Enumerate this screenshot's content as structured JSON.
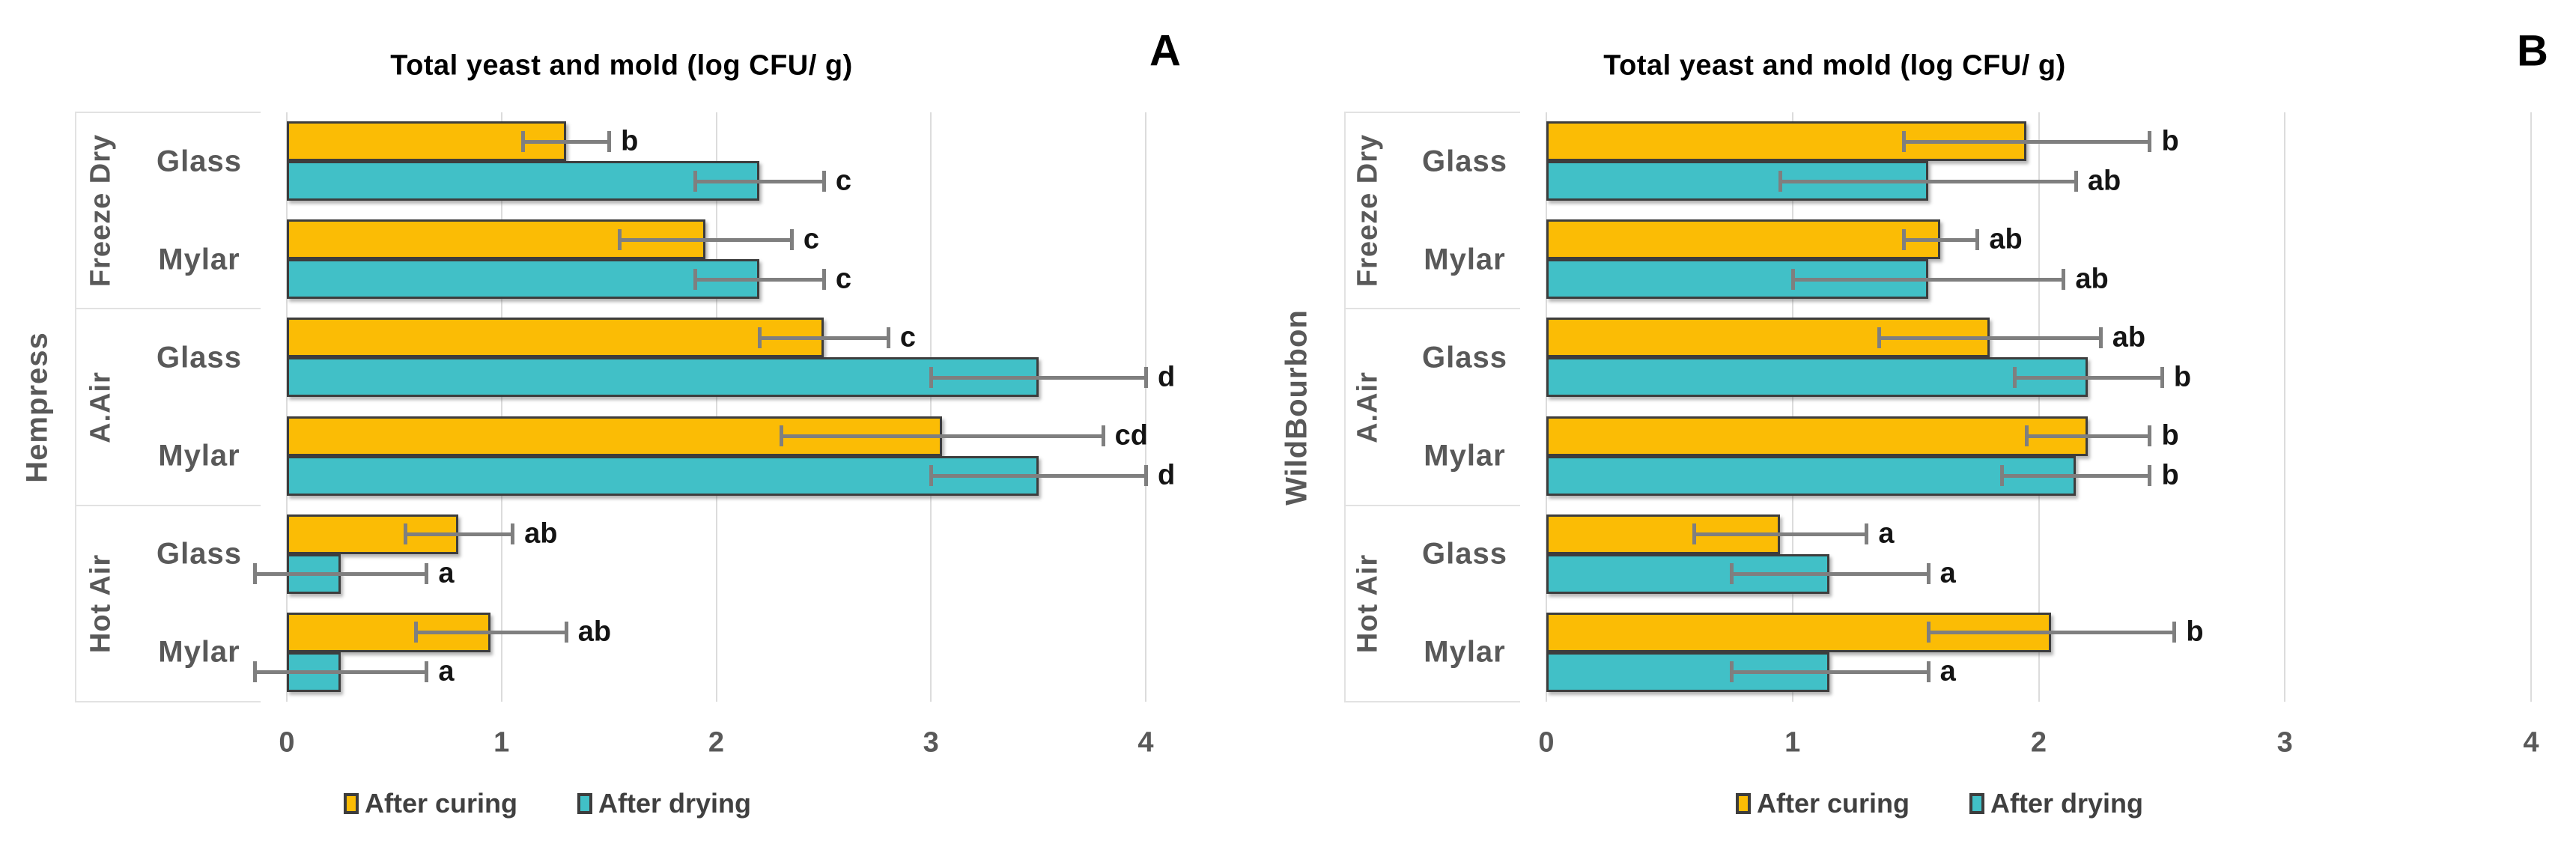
{
  "colors": {
    "after_curing": "#FBBC05",
    "after_drying": "#41C0C7",
    "bar_border": "#3D3D3D",
    "error_bar": "#7F7F7F",
    "gridline": "#DCDCDC",
    "frame_line": "#E2E2E2",
    "axis_text": "#595959",
    "title_text": "#000000",
    "sig_text": "#141414"
  },
  "chart_data": [
    {
      "type": "bar",
      "orientation": "horizontal",
      "panel_label": "A",
      "title": "Total yeast and mold (log CFU/ g)",
      "y_axis_outer_label": "Hempress",
      "xlim": [
        0,
        4
      ],
      "x_ticks": [
        0,
        1,
        2,
        3,
        4
      ],
      "grid": true,
      "legend": [
        "After curing",
        "After drying"
      ],
      "legend_position": "bottom",
      "groups": [
        {
          "label": "Freeze Dry",
          "subgroups": [
            {
              "label": "Glass",
              "bars": [
                {
                  "series": "After curing",
                  "value": 1.3,
                  "error": 0.2,
                  "sig_letter": "b"
                },
                {
                  "series": "After drying",
                  "value": 2.2,
                  "error": 0.3,
                  "sig_letter": "c"
                }
              ]
            },
            {
              "label": "Mylar",
              "bars": [
                {
                  "series": "After curing",
                  "value": 1.95,
                  "error": 0.4,
                  "sig_letter": "c"
                },
                {
                  "series": "After drying",
                  "value": 2.2,
                  "error": 0.3,
                  "sig_letter": "c"
                }
              ]
            }
          ]
        },
        {
          "label": "A.Air",
          "subgroups": [
            {
              "label": "Glass",
              "bars": [
                {
                  "series": "After curing",
                  "value": 2.5,
                  "error": 0.3,
                  "sig_letter": "c"
                },
                {
                  "series": "After drying",
                  "value": 3.5,
                  "error": 0.5,
                  "sig_letter": "d"
                }
              ]
            },
            {
              "label": "Mylar",
              "bars": [
                {
                  "series": "After curing",
                  "value": 3.05,
                  "error": 0.75,
                  "sig_letter": "cd"
                },
                {
                  "series": "After drying",
                  "value": 3.5,
                  "error": 0.5,
                  "sig_letter": "d"
                }
              ]
            }
          ]
        },
        {
          "label": "Hot Air",
          "subgroups": [
            {
              "label": "Glass",
              "bars": [
                {
                  "series": "After curing",
                  "value": 0.8,
                  "error": 0.25,
                  "sig_letter": "ab"
                },
                {
                  "series": "After drying",
                  "value": 0.25,
                  "error": 0.4,
                  "sig_letter": "a"
                }
              ]
            },
            {
              "label": "Mylar",
              "bars": [
                {
                  "series": "After curing",
                  "value": 0.95,
                  "error": 0.35,
                  "sig_letter": "ab"
                },
                {
                  "series": "After drying",
                  "value": 0.25,
                  "error": 0.4,
                  "sig_letter": "a"
                }
              ]
            }
          ]
        }
      ]
    },
    {
      "type": "bar",
      "orientation": "horizontal",
      "panel_label": "B",
      "title": "Total yeast and mold (log CFU/ g)",
      "y_axis_outer_label": "WildBourbon",
      "xlim": [
        0,
        4
      ],
      "x_ticks": [
        0,
        1,
        2,
        3,
        4
      ],
      "grid": true,
      "legend": [
        "After curing",
        "After drying"
      ],
      "legend_position": "bottom",
      "groups": [
        {
          "label": "Freeze Dry",
          "subgroups": [
            {
              "label": "Glass",
              "bars": [
                {
                  "series": "After curing",
                  "value": 1.95,
                  "error": 0.5,
                  "sig_letter": "b"
                },
                {
                  "series": "After drying",
                  "value": 1.55,
                  "error": 0.6,
                  "sig_letter": "ab"
                }
              ]
            },
            {
              "label": "Mylar",
              "bars": [
                {
                  "series": "After curing",
                  "value": 1.6,
                  "error": 0.15,
                  "sig_letter": "ab"
                },
                {
                  "series": "After drying",
                  "value": 1.55,
                  "error": 0.55,
                  "sig_letter": "ab"
                }
              ]
            }
          ]
        },
        {
          "label": "A.Air",
          "subgroups": [
            {
              "label": "Glass",
              "bars": [
                {
                  "series": "After curing",
                  "value": 1.8,
                  "error": 0.45,
                  "sig_letter": "ab"
                },
                {
                  "series": "After drying",
                  "value": 2.2,
                  "error": 0.3,
                  "sig_letter": "b"
                }
              ]
            },
            {
              "label": "Mylar",
              "bars": [
                {
                  "series": "After curing",
                  "value": 2.2,
                  "error": 0.25,
                  "sig_letter": "b"
                },
                {
                  "series": "After drying",
                  "value": 2.15,
                  "error": 0.3,
                  "sig_letter": "b"
                }
              ]
            }
          ]
        },
        {
          "label": "Hot Air",
          "subgroups": [
            {
              "label": "Glass",
              "bars": [
                {
                  "series": "After curing",
                  "value": 0.95,
                  "error": 0.35,
                  "sig_letter": "a"
                },
                {
                  "series": "After drying",
                  "value": 1.15,
                  "error": 0.4,
                  "sig_letter": "a"
                }
              ]
            },
            {
              "label": "Mylar",
              "bars": [
                {
                  "series": "After curing",
                  "value": 2.05,
                  "error": 0.5,
                  "sig_letter": "b"
                },
                {
                  "series": "After drying",
                  "value": 1.15,
                  "error": 0.4,
                  "sig_letter": "a"
                }
              ]
            }
          ]
        }
      ]
    }
  ]
}
